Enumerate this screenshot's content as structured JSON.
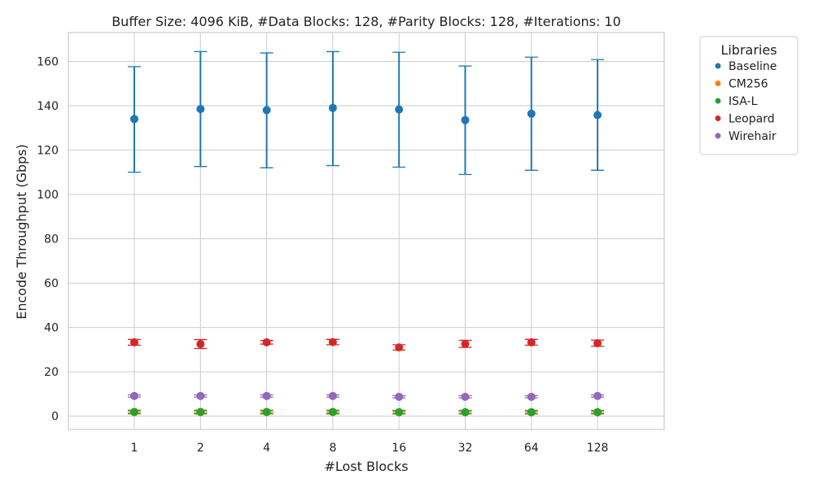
{
  "chart_data": {
    "type": "scatter",
    "title": "Buffer Size: 4096 KiB, #Data Blocks: 128, #Parity Blocks: 128, #Iterations: 10",
    "xlabel": "#Lost Blocks",
    "ylabel": "Encode Throughput (Gbps)",
    "categories": [
      "1",
      "2",
      "4",
      "8",
      "16",
      "32",
      "64",
      "128"
    ],
    "yticks": [
      0,
      20,
      40,
      60,
      80,
      100,
      120,
      140,
      160
    ],
    "ylim": [
      -6,
      173
    ],
    "grid": true,
    "error_bars": true,
    "legend": {
      "title": "Libraries",
      "placement": "outside-top-right"
    },
    "series": [
      {
        "name": "Baseline",
        "color": "#1f77b4",
        "values": [
          134,
          138.5,
          138,
          139,
          138.3,
          133.5,
          136.4,
          135.8
        ],
        "lower": [
          110,
          112.6,
          112,
          113,
          112.3,
          109,
          110.9,
          110.9
        ],
        "upper": [
          157.6,
          164.4,
          163.8,
          164.4,
          164.1,
          157.9,
          161.9,
          160.8
        ]
      },
      {
        "name": "CM256",
        "color": "#ff7f0e",
        "values": [
          1.8,
          1.8,
          1.8,
          1.8,
          1.7,
          1.7,
          1.7,
          1.7
        ],
        "lower": [
          1.4,
          1.4,
          1.4,
          1.4,
          1.3,
          1.3,
          1.3,
          1.3
        ],
        "upper": [
          2.2,
          2.2,
          2.2,
          2.2,
          2.1,
          2.1,
          2.1,
          2.1
        ]
      },
      {
        "name": "ISA-L",
        "color": "#2ca02c",
        "values": [
          1.9,
          1.9,
          1.9,
          1.9,
          1.8,
          1.8,
          1.8,
          1.8
        ],
        "lower": [
          1.0,
          1.0,
          1.0,
          1.0,
          1.0,
          1.0,
          1.0,
          1.0
        ],
        "upper": [
          2.7,
          2.7,
          2.7,
          2.7,
          2.6,
          2.6,
          2.6,
          2.6
        ]
      },
      {
        "name": "Leopard",
        "color": "#d62728",
        "values": [
          33.3,
          32.5,
          33.3,
          33.4,
          31,
          32.6,
          33.3,
          32.9
        ],
        "lower": [
          32,
          30.5,
          32.5,
          32.2,
          29.8,
          31,
          32,
          31.5
        ],
        "upper": [
          34.6,
          34.5,
          34.1,
          34.6,
          32.2,
          34.2,
          34.6,
          34.3
        ]
      },
      {
        "name": "Wirehair",
        "color": "#9467bd",
        "values": [
          9.1,
          9.1,
          9.1,
          9.1,
          8.7,
          8.7,
          8.7,
          9.1
        ],
        "lower": [
          8.6,
          8.6,
          8.6,
          8.6,
          8.2,
          8.2,
          8.2,
          8.6
        ],
        "upper": [
          9.6,
          9.6,
          9.6,
          9.6,
          9.2,
          9.2,
          9.2,
          9.6
        ]
      }
    ]
  }
}
